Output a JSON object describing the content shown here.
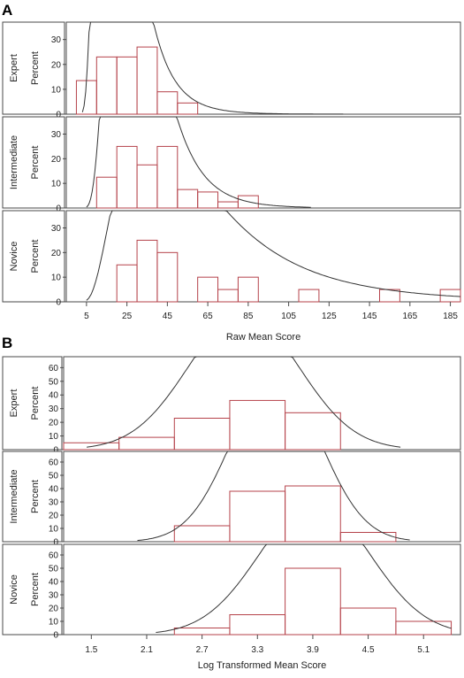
{
  "figure": {
    "panel_a_label": "A",
    "panel_b_label": "B"
  },
  "chart_data": [
    {
      "type": "bar",
      "panel": "A",
      "xlabel": "Raw Mean Score",
      "ylabel": "Percent",
      "x_ticks": [
        5,
        25,
        45,
        65,
        85,
        105,
        125,
        145,
        165,
        185
      ],
      "xlim": [
        -5,
        190
      ],
      "bin_width": 10,
      "subplots": [
        {
          "name": "Expert",
          "ylim": [
            0,
            37
          ],
          "y_ticks": [
            0,
            10,
            20,
            30
          ],
          "bins": [
            {
              "x": 5,
              "v": 13.5
            },
            {
              "x": 15,
              "v": 23
            },
            {
              "x": 25,
              "v": 23
            },
            {
              "x": 35,
              "v": 27
            },
            {
              "x": 45,
              "v": 9
            },
            {
              "x": 55,
              "v": 4.5
            }
          ],
          "curve": {
            "kind": "lognormal",
            "mu": 3.0,
            "sigma": 0.5,
            "scale": 40,
            "x_start": 3,
            "x_end": 132
          }
        },
        {
          "name": "Intermediate",
          "ylim": [
            0,
            37
          ],
          "y_ticks": [
            0,
            10,
            20,
            30
          ],
          "bins": [
            {
              "x": 15,
              "v": 12.5
            },
            {
              "x": 25,
              "v": 25
            },
            {
              "x": 35,
              "v": 17.5
            },
            {
              "x": 45,
              "v": 25
            },
            {
              "x": 55,
              "v": 7.5
            },
            {
              "x": 65,
              "v": 6.5
            },
            {
              "x": 75,
              "v": 2.5
            },
            {
              "x": 85,
              "v": 5
            }
          ],
          "curve": {
            "kind": "lognormal",
            "mu": 3.37,
            "sigma": 0.45,
            "scale": 42,
            "x_start": 5,
            "x_end": 116
          }
        },
        {
          "name": "Novice",
          "ylim": [
            0,
            37
          ],
          "y_ticks": [
            0,
            10,
            20,
            30
          ],
          "bins": [
            {
              "x": 25,
              "v": 15
            },
            {
              "x": 35,
              "v": 25
            },
            {
              "x": 45,
              "v": 20
            },
            {
              "x": 65,
              "v": 10
            },
            {
              "x": 75,
              "v": 5
            },
            {
              "x": 85,
              "v": 10
            },
            {
              "x": 115,
              "v": 5
            },
            {
              "x": 155,
              "v": 5
            },
            {
              "x": 185,
              "v": 5
            }
          ],
          "curve": {
            "kind": "lognormal",
            "mu": 3.97,
            "sigma": 0.63,
            "scale": 50,
            "x_start": 5,
            "x_end": 190
          }
        }
      ]
    },
    {
      "type": "bar",
      "panel": "B",
      "xlabel": "Log Transformed Mean Score",
      "ylabel": "Percent",
      "x_ticks": [
        1.5,
        2.1,
        2.7,
        3.3,
        3.9,
        4.5,
        5.1
      ],
      "xlim": [
        1.2,
        5.5
      ],
      "bin_width": 0.6,
      "subplots": [
        {
          "name": "Expert",
          "ylim": [
            0,
            68
          ],
          "y_ticks": [
            0,
            10,
            20,
            30,
            40,
            50,
            60
          ],
          "bins": [
            {
              "x": 1.5,
              "v": 5
            },
            {
              "x": 2.1,
              "v": 9
            },
            {
              "x": 2.7,
              "v": 23
            },
            {
              "x": 3.3,
              "v": 36
            },
            {
              "x": 3.9,
              "v": 27
            }
          ],
          "curve": {
            "kind": "normal",
            "mu": 3.15,
            "sigma": 0.6,
            "scale": 25,
            "x_start": 1.45,
            "x_end": 4.85
          }
        },
        {
          "name": "Intermediate",
          "ylim": [
            0,
            68
          ],
          "y_ticks": [
            0,
            10,
            20,
            30,
            40,
            50,
            60
          ],
          "bins": [
            {
              "x": 2.7,
              "v": 12
            },
            {
              "x": 3.3,
              "v": 38
            },
            {
              "x": 3.9,
              "v": 42
            },
            {
              "x": 4.5,
              "v": 7
            }
          ],
          "curve": {
            "kind": "normal",
            "mu": 3.5,
            "sigma": 0.48,
            "scale": 25,
            "x_start": 2.0,
            "x_end": 4.95
          }
        },
        {
          "name": "Novice",
          "ylim": [
            0,
            68
          ],
          "y_ticks": [
            0,
            10,
            20,
            30,
            40,
            50,
            60
          ],
          "bins": [
            {
              "x": 2.7,
              "v": 5
            },
            {
              "x": 3.3,
              "v": 15
            },
            {
              "x": 3.9,
              "v": 50
            },
            {
              "x": 4.5,
              "v": 20
            },
            {
              "x": 5.1,
              "v": 10
            }
          ],
          "curve": {
            "kind": "normal",
            "mu": 3.92,
            "sigma": 0.6,
            "scale": 25,
            "x_start": 2.2,
            "x_end": 5.4
          }
        }
      ]
    }
  ],
  "colors": {
    "bar_stroke": "#b5424a",
    "curve": "#333333",
    "frame": "#4a4a4a",
    "text": "#222222"
  }
}
